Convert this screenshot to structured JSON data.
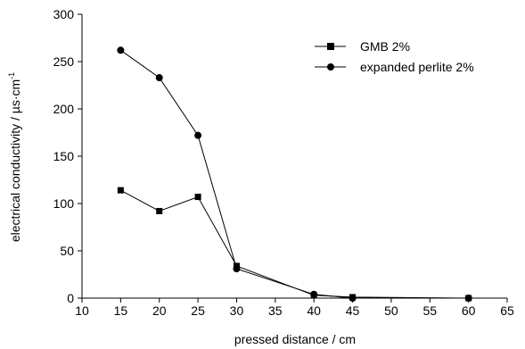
{
  "chart_data": {
    "type": "line",
    "title": "",
    "xlabel": "pressed distance / cm",
    "ylabel_main": "electrical conductivity / ",
    "ylabel_unit": "µs·cm",
    "ylabel_exp": "-1",
    "xlim": [
      10,
      65
    ],
    "ylim": [
      0,
      300
    ],
    "xticks": [
      10,
      15,
      20,
      25,
      30,
      35,
      40,
      45,
      50,
      55,
      60,
      65
    ],
    "yticks": [
      0,
      50,
      100,
      150,
      200,
      250,
      300
    ],
    "grid": false,
    "legend_position": "top-right",
    "series": [
      {
        "name": "GMB 2%",
        "marker": "square",
        "color": "#000000",
        "x": [
          15,
          20,
          25,
          30,
          40,
          45,
          60
        ],
        "y": [
          114,
          92,
          107,
          34,
          3,
          1,
          0
        ]
      },
      {
        "name": "expanded perlite 2%",
        "marker": "circle",
        "color": "#000000",
        "x": [
          15,
          20,
          25,
          30,
          40,
          45,
          60
        ],
        "y": [
          262,
          233,
          172,
          31,
          4,
          0,
          0
        ]
      }
    ]
  }
}
